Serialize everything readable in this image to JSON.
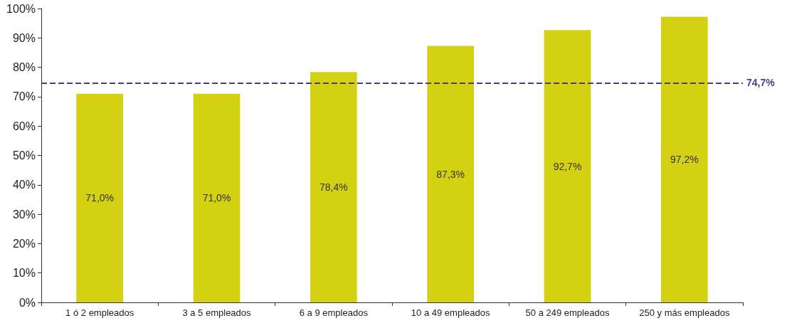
{
  "chart_data": {
    "type": "bar",
    "categories": [
      "1 ó 2 empleados",
      "3 a 5 empleados",
      "6 a 9 empleados",
      "10 a 49 empleados",
      "50 a 249 empleados",
      "250 y más empleados"
    ],
    "values": [
      71.0,
      71.0,
      78.4,
      87.3,
      92.7,
      97.2
    ],
    "value_labels": [
      "71,0%",
      "71,0%",
      "78,4%",
      "87,3%",
      "92,7%",
      "97,2%"
    ],
    "color": "#d4d012",
    "ylim": [
      0,
      100
    ],
    "yticks": [
      {
        "value": 0,
        "label": "0%"
      },
      {
        "value": 10,
        "label": "10%"
      },
      {
        "value": 20,
        "label": "20%"
      },
      {
        "value": 30,
        "label": "30%"
      },
      {
        "value": 40,
        "label": "40%"
      },
      {
        "value": 50,
        "label": "50%"
      },
      {
        "value": 60,
        "label": "60%"
      },
      {
        "value": 70,
        "label": "70%"
      },
      {
        "value": 80,
        "label": "80%"
      },
      {
        "value": 90,
        "label": "90%"
      },
      {
        "value": 100,
        "label": "100%"
      }
    ],
    "ref_lines": [
      {
        "axis": "y",
        "value": 74.7,
        "label": "74,7%",
        "color": "#4b3a8f",
        "line_style": "dashed"
      }
    ]
  }
}
